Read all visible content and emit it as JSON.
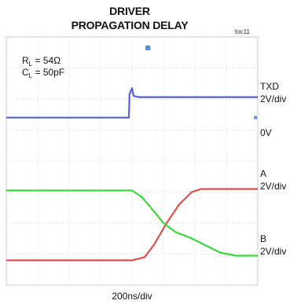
{
  "chart_data": {
    "type": "line",
    "title_line1": "DRIVER",
    "title_line2": "PROPAGATION DELAY",
    "figure_id": "toc11",
    "xlabel": "200ns/div",
    "params": [
      {
        "sym": "R",
        "sub": "L",
        "rest": " = 54Ω"
      },
      {
        "sym": "C",
        "sub": "L",
        "rest": " = 50pF"
      }
    ],
    "grid": {
      "divisions_x": 8,
      "divisions_y": 8,
      "style": "dotted"
    },
    "xlim": [
      0,
      8
    ],
    "ylim": [
      0,
      8
    ],
    "markers": {
      "trigger_x": 4.5,
      "zero_level_y": 5.4
    },
    "series": [
      {
        "name": "TXD",
        "scale": "2V/div",
        "color": "#5560d0",
        "points": [
          [
            0,
            5.4
          ],
          [
            3.9,
            5.4
          ],
          [
            3.92,
            6.15
          ],
          [
            4.0,
            6.35
          ],
          [
            4.05,
            6.1
          ],
          [
            4.2,
            6.06
          ],
          [
            8,
            6.06
          ]
        ]
      },
      {
        "name": "A",
        "scale": "2V/div",
        "color": "#d94f4f",
        "points": [
          [
            0,
            0.8
          ],
          [
            4.0,
            0.8
          ],
          [
            4.4,
            0.9
          ],
          [
            4.7,
            1.3
          ],
          [
            5.1,
            2.0
          ],
          [
            5.5,
            2.6
          ],
          [
            5.9,
            3.0
          ],
          [
            6.2,
            3.1
          ],
          [
            8,
            3.1
          ]
        ]
      },
      {
        "name": "B",
        "scale": "2V/div",
        "color": "#3cd63c",
        "points": [
          [
            0,
            3.05
          ],
          [
            4.0,
            3.05
          ],
          [
            4.3,
            2.85
          ],
          [
            4.6,
            2.5
          ],
          [
            5.0,
            2.0
          ],
          [
            5.4,
            1.7
          ],
          [
            5.8,
            1.55
          ],
          [
            6.3,
            1.3
          ],
          [
            6.8,
            1.05
          ],
          [
            7.3,
            0.95
          ],
          [
            8,
            0.95
          ]
        ]
      }
    ],
    "right_labels": [
      {
        "text": "TXD",
        "y": 6.4
      },
      {
        "text": "2V/div",
        "y": 6.0
      },
      {
        "text": "0V",
        "y": 4.9
      },
      {
        "text": "A",
        "y": 3.6
      },
      {
        "text": "2V/div",
        "y": 3.2
      },
      {
        "text": "B",
        "y": 1.5
      },
      {
        "text": "2V/div",
        "y": 1.1
      }
    ]
  }
}
